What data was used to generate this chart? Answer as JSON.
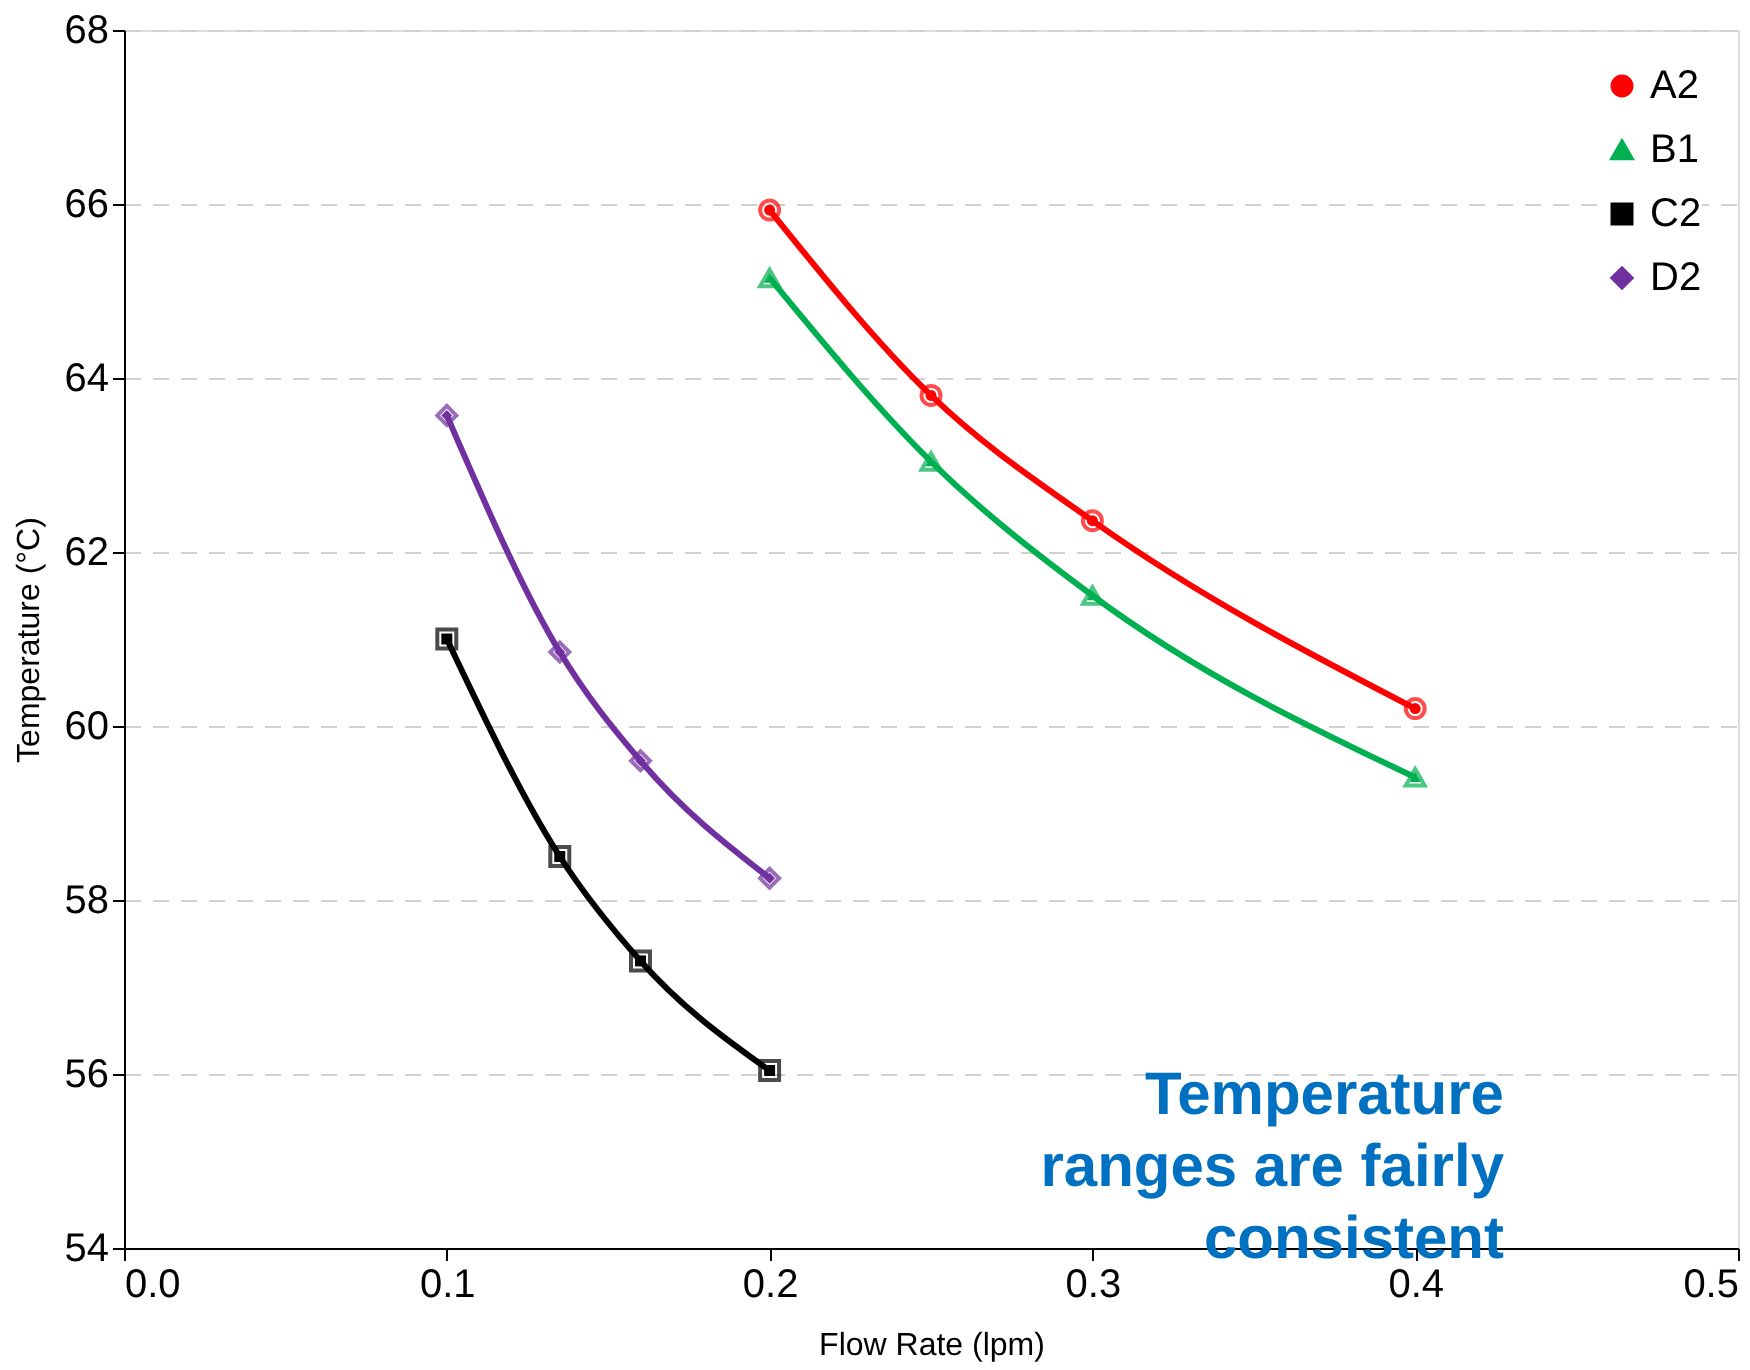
{
  "chart_data": {
    "type": "line",
    "xlabel": "Flow Rate (lpm)",
    "ylabel": "Temperature (°C)",
    "xlim": [
      0,
      0.5
    ],
    "xticks": [
      {
        "value": 0,
        "label": "0.0"
      },
      0.1,
      0.2,
      0.3,
      0.4,
      0.5
    ],
    "ylim": [
      54,
      68
    ],
    "yticks": [
      54,
      56,
      58,
      60,
      62,
      64,
      66,
      68
    ],
    "grid": "y",
    "legend": "top right",
    "line_style": "solid",
    "series": [
      {
        "name": "A2",
        "color": "#ff0000",
        "marker": "circle",
        "x": [
          0.2,
          0.25,
          0.3,
          0.4
        ],
        "values": [
          65.93,
          63.8,
          62.36,
          60.2
        ]
      },
      {
        "name": "B1",
        "color": "#00b050",
        "marker": "triangle",
        "x": [
          0.2,
          0.25,
          0.3,
          0.4
        ],
        "values": [
          65.15,
          63.04,
          61.5,
          59.41
        ]
      },
      {
        "name": "C2",
        "color": "#000000",
        "marker": "square",
        "x": [
          0.1,
          0.135,
          0.16,
          0.2
        ],
        "values": [
          61.0,
          58.5,
          57.3,
          56.04
        ]
      },
      {
        "name": "D2",
        "color": "#7030a0",
        "marker": "diamond",
        "x": [
          0.1,
          0.135,
          0.16,
          0.2
        ],
        "values": [
          63.57,
          60.85,
          59.6,
          58.25
        ]
      }
    ],
    "annotations": [
      "Temperature\nranges are fairly\nconsistent"
    ]
  }
}
